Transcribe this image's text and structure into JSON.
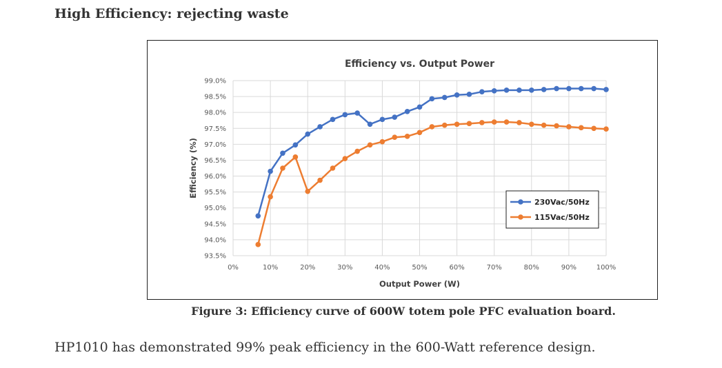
{
  "article": {
    "section_heading": "High Efficiency: rejecting waste",
    "figure_caption": "Figure 3: Efficiency curve of 600W totem pole PFC evaluation board.",
    "body_paragraph": "HP1010 has demonstrated 99% peak efficiency in the 600-Watt reference design."
  },
  "chart_data": {
    "type": "line",
    "title": "Efficiency vs. Output Power",
    "xlabel": "Output Power (W)",
    "ylabel": "Efficiency (%)",
    "xlim": [
      0,
      100
    ],
    "ylim": [
      93.5,
      99.0
    ],
    "x_ticks": [
      0,
      10,
      20,
      30,
      40,
      50,
      60,
      70,
      80,
      90,
      100
    ],
    "x_tick_labels": [
      "0%",
      "10%",
      "20%",
      "30%",
      "40%",
      "50%",
      "60%",
      "70%",
      "80%",
      "90%",
      "100%"
    ],
    "y_ticks": [
      93.5,
      94.0,
      94.5,
      95.0,
      95.5,
      96.0,
      96.5,
      97.0,
      97.5,
      98.0,
      98.5,
      99.0
    ],
    "y_tick_labels": [
      "93.5%",
      "94.0%",
      "94.5%",
      "95.0%",
      "95.5%",
      "96.0%",
      "96.5%",
      "97.0%",
      "97.5%",
      "98.0%",
      "98.5%",
      "99.0%"
    ],
    "grid": true,
    "legend_position": "lower-right",
    "x": [
      6.7,
      10,
      13.3,
      16.7,
      20,
      23.3,
      26.7,
      30,
      33.3,
      36.7,
      40,
      43.3,
      46.7,
      50,
      53.3,
      56.7,
      60,
      63.3,
      66.7,
      70,
      73.3,
      76.7,
      80,
      83.3,
      86.7,
      90,
      93.3,
      96.7,
      100
    ],
    "series": [
      {
        "name": "230Vac/50Hz",
        "color": "#4472C4",
        "values": [
          94.75,
          96.15,
          96.72,
          96.98,
          97.32,
          97.55,
          97.78,
          97.93,
          97.98,
          97.63,
          97.78,
          97.85,
          98.03,
          98.17,
          98.43,
          98.47,
          98.55,
          98.57,
          98.65,
          98.68,
          98.7,
          98.7,
          98.7,
          98.72,
          98.75,
          98.75,
          98.75,
          98.75,
          98.72
        ]
      },
      {
        "name": "115Vac/50Hz",
        "color": "#ED7D31",
        "values": [
          93.85,
          95.35,
          96.25,
          96.6,
          95.52,
          95.87,
          96.25,
          96.55,
          96.78,
          96.98,
          97.08,
          97.22,
          97.25,
          97.37,
          97.55,
          97.6,
          97.63,
          97.65,
          97.68,
          97.7,
          97.7,
          97.68,
          97.63,
          97.6,
          97.58,
          97.55,
          97.52,
          97.5,
          97.48
        ]
      }
    ]
  }
}
